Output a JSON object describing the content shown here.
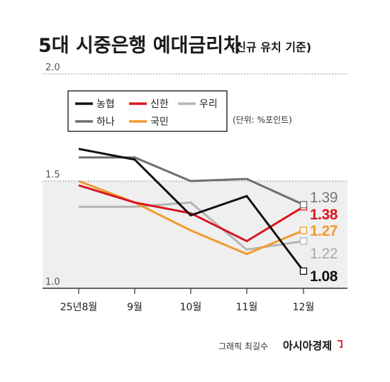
{
  "title": "5대 시중은행 예대금리차",
  "subtitle": "(신규 유치 기준)",
  "unit": "(단위: %포인트)",
  "credit": "그래픽 최길수",
  "brand": "아시아경제",
  "chart_data": {
    "type": "line",
    "categories": [
      "25년8월",
      "9월",
      "10월",
      "11월",
      "12월"
    ],
    "ylim": [
      1.0,
      2.0
    ],
    "yticks": [
      "2.0",
      "1.5",
      "1.0"
    ],
    "grid": true,
    "legend_position": "top-left",
    "series": [
      {
        "name": "농협",
        "color": "#111111",
        "values": [
          1.65,
          1.6,
          1.34,
          1.43,
          1.08
        ],
        "end_label": "1.08",
        "end_color": "#111111",
        "end_bold": true
      },
      {
        "name": "신한",
        "color": "#d9161d",
        "values": [
          1.48,
          1.4,
          1.35,
          1.22,
          1.38
        ],
        "end_label": "1.38",
        "end_color": "#d9161d",
        "end_bold": true
      },
      {
        "name": "우리",
        "color": "#b5b5b5",
        "values": [
          1.38,
          1.38,
          1.4,
          1.18,
          1.22
        ],
        "end_label": "1.22",
        "end_color": "#a9a9a9",
        "end_bold": false
      },
      {
        "name": "하나",
        "color": "#6e6e6e",
        "values": [
          1.61,
          1.61,
          1.5,
          1.51,
          1.39
        ],
        "end_label": "1.39",
        "end_color": "#777777",
        "end_bold": false
      },
      {
        "name": "국민",
        "color": "#f29a2e",
        "values": [
          1.5,
          1.4,
          1.27,
          1.16,
          1.27
        ],
        "end_label": "1.27",
        "end_color": "#f29a2e",
        "end_bold": true
      }
    ]
  }
}
